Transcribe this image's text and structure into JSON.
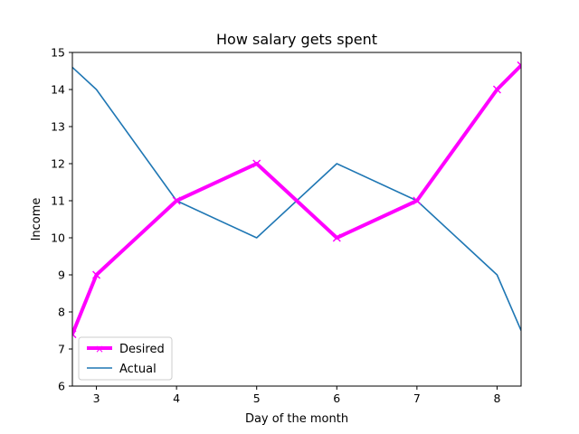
{
  "chart_data": {
    "type": "line",
    "title": "How salary gets spent",
    "xlabel": "Day of the month",
    "ylabel": "Income",
    "xlim": [
      2.7,
      8.3
    ],
    "ylim": [
      6,
      15
    ],
    "x_ticks": [
      3,
      4,
      5,
      6,
      7,
      8
    ],
    "y_ticks": [
      6,
      7,
      8,
      9,
      10,
      11,
      12,
      13,
      14,
      15
    ],
    "grid": false,
    "legend_position": "lower-left",
    "series": [
      {
        "name": "Desired",
        "color": "#ff00ff",
        "marker": "x",
        "line_style": "thick",
        "x": [
          2.7,
          3,
          4,
          5,
          6,
          7,
          8,
          8.3
        ],
        "y": [
          7.4,
          9,
          11,
          12,
          10,
          11,
          14,
          14.65
        ]
      },
      {
        "name": "Actual",
        "color": "#1f77b4",
        "marker": "none",
        "line_style": "thin",
        "x": [
          2.7,
          3,
          4,
          5,
          6,
          7,
          8,
          8.3
        ],
        "y": [
          14.6,
          14,
          11,
          10,
          12,
          11,
          9,
          7.5
        ]
      }
    ]
  }
}
